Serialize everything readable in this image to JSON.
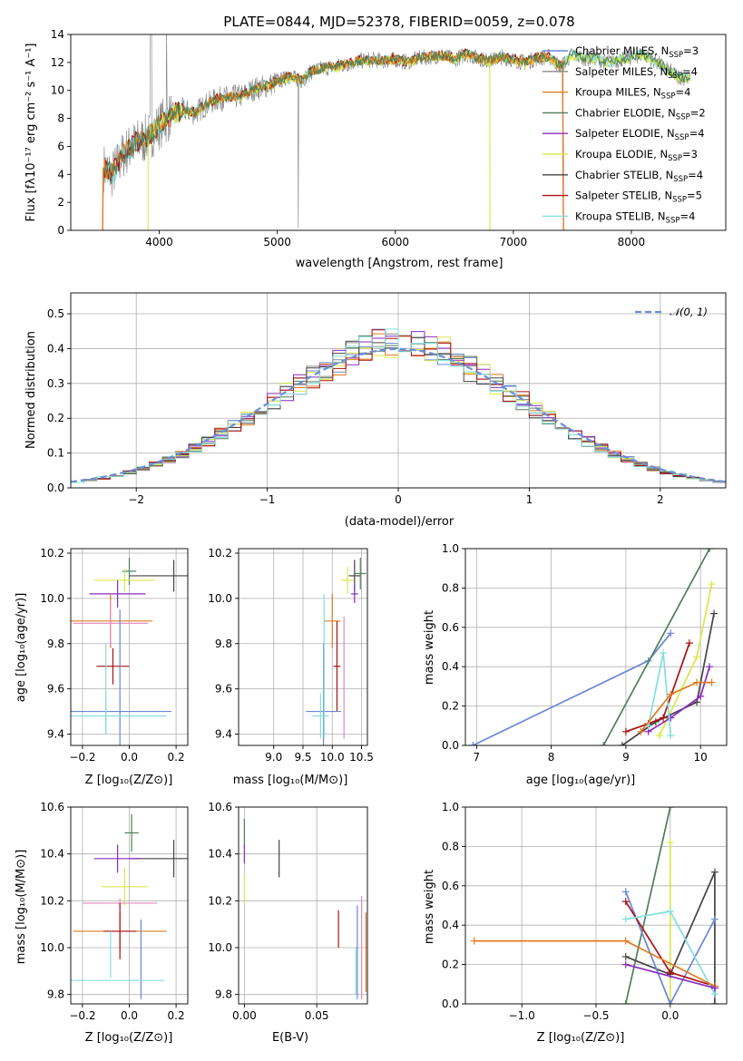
{
  "colors": {
    "Chabrier MILES": "#6b86d6",
    "Salpeter MILES": "#888888",
    "Kroupa MILES": "#e07b22",
    "Chabrier ELODIE": "#4f7f5a",
    "Salpeter ELODIE": "#8a2bbf",
    "Kroupa ELODIE": "#d9e84a",
    "Chabrier STELIB": "#444444",
    "Salpeter STELIB": "#aa1111",
    "Kroupa STELIB": "#84dede",
    "gauss": "#6a8fd8",
    "pink": "#e088c0"
  },
  "chart_data": [
    {
      "id": "spectrum",
      "type": "line",
      "title": "PLATE=0844, MJD=52378, FIBERID=0059, z=0.078",
      "xlabel": "wavelength [Angstrom, rest frame]",
      "ylabel": "Flux [fλ10⁻¹⁷ erg cm⁻² s⁻¹ A⁻¹]",
      "xlim": [
        3250,
        8800
      ],
      "ylim": [
        0,
        14
      ],
      "xticks": [
        4000,
        5000,
        6000,
        7000,
        8000
      ],
      "yticks": [
        0,
        2,
        4,
        6,
        8,
        10,
        12,
        14
      ],
      "grid": false,
      "legend_position": "right",
      "legend": [
        {
          "label": "Chabrier MILES, N",
          "sub": "SSP",
          "suffix": "=3",
          "color": "Chabrier MILES"
        },
        {
          "label": "Salpeter MILES, N",
          "sub": "SSP",
          "suffix": "=4",
          "color": "Salpeter MILES"
        },
        {
          "label": "Kroupa MILES, N",
          "sub": "SSP",
          "suffix": "=4",
          "color": "Kroupa MILES"
        },
        {
          "label": "Chabrier ELODIE, N",
          "sub": "SSP",
          "suffix": "=2",
          "color": "Chabrier ELODIE"
        },
        {
          "label": "Salpeter ELODIE, N",
          "sub": "SSP",
          "suffix": "=4",
          "color": "Salpeter ELODIE"
        },
        {
          "label": "Kroupa ELODIE, N",
          "sub": "SSP",
          "suffix": "=3",
          "color": "Kroupa ELODIE"
        },
        {
          "label": "Chabrier STELIB, N",
          "sub": "SSP",
          "suffix": "=4",
          "color": "Chabrier STELIB"
        },
        {
          "label": "Salpeter STELIB, N",
          "sub": "SSP",
          "suffix": "=5",
          "color": "Salpeter STELIB"
        },
        {
          "label": "Kroupa STELIB, N",
          "sub": "SSP",
          "suffix": "=4",
          "color": "Kroupa STELIB"
        }
      ],
      "observed_envelope": [
        [
          3530,
          4.5
        ],
        [
          3600,
          4.0
        ],
        [
          3700,
          5.5
        ],
        [
          3800,
          6.2
        ],
        [
          3900,
          6.6
        ],
        [
          4000,
          7.5
        ],
        [
          4100,
          8.2
        ],
        [
          4200,
          8.6
        ],
        [
          4300,
          8.4
        ],
        [
          4400,
          9.0
        ],
        [
          4500,
          9.4
        ],
        [
          4600,
          9.5
        ],
        [
          4700,
          9.6
        ],
        [
          4800,
          10.1
        ],
        [
          4900,
          10.3
        ],
        [
          5000,
          10.6
        ],
        [
          5100,
          11.0
        ],
        [
          5200,
          10.7
        ],
        [
          5300,
          11.4
        ],
        [
          5400,
          11.6
        ],
        [
          5500,
          11.7
        ],
        [
          5600,
          11.9
        ],
        [
          5700,
          12.1
        ],
        [
          5800,
          12.2
        ],
        [
          5900,
          12.1
        ],
        [
          6000,
          12.2
        ],
        [
          6100,
          12.0
        ],
        [
          6200,
          12.3
        ],
        [
          6300,
          12.4
        ],
        [
          6400,
          12.5
        ],
        [
          6500,
          12.2
        ],
        [
          6600,
          12.6
        ],
        [
          6700,
          12.3
        ],
        [
          6800,
          12.1
        ],
        [
          6900,
          12.4
        ],
        [
          7000,
          12.2
        ],
        [
          7100,
          12.0
        ],
        [
          7200,
          12.3
        ],
        [
          7300,
          12.4
        ],
        [
          7400,
          11.7
        ],
        [
          7500,
          12.6
        ],
        [
          7600,
          12.3
        ],
        [
          7700,
          12.3
        ],
        [
          7800,
          12.0
        ],
        [
          7900,
          12.2
        ],
        [
          8000,
          12.4
        ],
        [
          8100,
          12.6
        ],
        [
          8200,
          12.1
        ],
        [
          8300,
          11.5
        ],
        [
          8400,
          11.0
        ],
        [
          8500,
          10.8
        ]
      ]
    },
    {
      "id": "residuals",
      "type": "histogram",
      "xlabel": "(data-model)/error",
      "ylabel": "Normed distribution",
      "xlim": [
        -2.5,
        2.5
      ],
      "ylim": [
        0,
        0.56
      ],
      "xticks": [
        -2,
        -1,
        0,
        1,
        2
      ],
      "yticks": [
        0.0,
        0.1,
        0.2,
        0.3,
        0.4,
        0.5
      ],
      "grid": true,
      "legend_position": "top-right",
      "legend": "𝒩(0, 1)"
    },
    {
      "id": "age_vs_Z",
      "type": "errorbar",
      "xlabel": "Z [log₁₀(Z/Z⊙)]",
      "ylabel": "age  [log₁₀(age/yr)]",
      "xlim": [
        -0.25,
        0.25
      ],
      "ylim": [
        9.35,
        10.22
      ],
      "xticks": [
        -0.2,
        0.0,
        0.2
      ],
      "yticks": [
        9.4,
        9.6,
        9.8,
        10.0,
        10.2
      ],
      "grid": true,
      "points": [
        {
          "color": "Chabrier STELIB",
          "x": 0.19,
          "xerr": 0.19,
          "y": 10.1,
          "yerr": 0.07
        },
        {
          "color": "Chabrier ELODIE",
          "x": 0.0,
          "xerr": 0.03,
          "y": 10.12,
          "yerr": 0.06
        },
        {
          "color": "Kroupa ELODIE",
          "x": -0.02,
          "xerr": 0.13,
          "y": 10.08,
          "yerr": 0.05
        },
        {
          "color": "Salpeter ELODIE",
          "x": -0.05,
          "xerr": 0.12,
          "y": 10.02,
          "yerr": 0.06
        },
        {
          "color": "Kroupa MILES",
          "x": -0.08,
          "xerr": 0.18,
          "y": 9.9,
          "yerr": 0.12
        },
        {
          "color": "pink",
          "x": -0.08,
          "xerr": 0.16,
          "y": 9.89,
          "yerr": 0.1
        },
        {
          "color": "Salpeter STELIB",
          "x": -0.07,
          "xerr": 0.07,
          "y": 9.7,
          "yerr": 0.08
        },
        {
          "color": "Chabrier MILES",
          "x": -0.04,
          "xerr": 0.22,
          "y": 9.5,
          "yerr": 0.45
        },
        {
          "color": "Kroupa STELIB",
          "x": -0.1,
          "xerr": 0.26,
          "y": 9.48,
          "yerr": 0.08
        },
        {
          "color": "Kroupa STELIB",
          "x": -0.1,
          "xerr": 0.0,
          "y": 9.6,
          "yerr": 0.2
        }
      ]
    },
    {
      "id": "age_vs_mass",
      "type": "errorbar",
      "xlabel": "mass [log₁₀(M/M⊙)]",
      "ylabel": "",
      "xlim": [
        8.4,
        10.6
      ],
      "ylim": [
        9.35,
        10.22
      ],
      "xticks": [
        9.0,
        9.5,
        10.0,
        10.5
      ],
      "yticks": [
        9.4,
        9.6,
        9.8,
        10.0,
        10.2
      ],
      "grid": true,
      "points": [
        {
          "color": "Chabrier ELODIE",
          "x": 10.48,
          "xerr": 0.1,
          "y": 10.11,
          "yerr": 0.07
        },
        {
          "color": "Chabrier STELIB",
          "x": 10.38,
          "xerr": 0.1,
          "y": 10.1,
          "yerr": 0.07
        },
        {
          "color": "Kroupa ELODIE",
          "x": 10.26,
          "xerr": 0.1,
          "y": 10.08,
          "yerr": 0.06
        },
        {
          "color": "Salpeter ELODIE",
          "x": 10.38,
          "xerr": 0.06,
          "y": 10.02,
          "yerr": 0.04
        },
        {
          "color": "Kroupa MILES",
          "x": 10.0,
          "xerr": 0.14,
          "y": 9.9,
          "yerr": 0.12
        },
        {
          "color": "pink",
          "x": 10.2,
          "xerr": 0.0,
          "y": 9.65,
          "yerr": 0.27
        },
        {
          "color": "Salpeter STELIB",
          "x": 10.08,
          "xerr": 0.06,
          "y": 9.7,
          "yerr": 0.2
        },
        {
          "color": "Chabrier MILES",
          "x": 9.85,
          "xerr": 0.3,
          "y": 9.5,
          "yerr": 0.3
        },
        {
          "color": "Kroupa STELIB",
          "x": 9.8,
          "xerr": 0.14,
          "y": 9.48,
          "yerr": 0.1
        },
        {
          "color": "Kroupa STELIB",
          "x": 9.86,
          "xerr": 0.0,
          "y": 9.7,
          "yerr": 0.32
        }
      ]
    },
    {
      "id": "weight_vs_age",
      "type": "line",
      "xlabel": "age  [log₁₀(age/yr)]",
      "ylabel": "mass weight",
      "xlim": [
        6.85,
        10.35
      ],
      "ylim": [
        0,
        1.0
      ],
      "xticks": [
        7,
        8,
        9,
        10
      ],
      "yticks": [
        0.0,
        0.2,
        0.4,
        0.6,
        0.8,
        1.0
      ],
      "grid": true,
      "series": [
        {
          "color": "Chabrier MILES",
          "x": [
            6.95,
            9.3,
            9.6
          ],
          "y": [
            0.0,
            0.43,
            0.57
          ]
        },
        {
          "color": "Chabrier ELODIE",
          "x": [
            8.7,
            10.12
          ],
          "y": [
            0.0,
            1.0
          ]
        },
        {
          "color": "Kroupa ELODIE",
          "x": [
            9.45,
            9.95,
            10.15
          ],
          "y": [
            0.05,
            0.45,
            0.82
          ]
        },
        {
          "color": "Chabrier STELIB",
          "x": [
            8.95,
            9.4,
            9.95,
            10.18
          ],
          "y": [
            0.0,
            0.12,
            0.22,
            0.67
          ]
        },
        {
          "color": "Salpeter STELIB",
          "x": [
            9.0,
            9.3,
            9.5,
            9.85
          ],
          "y": [
            0.07,
            0.11,
            0.14,
            0.52
          ]
        },
        {
          "color": "Salpeter ELODIE",
          "x": [
            9.3,
            9.6,
            10.0,
            10.12
          ],
          "y": [
            0.07,
            0.14,
            0.25,
            0.4
          ]
        },
        {
          "color": "Kroupa STELIB",
          "x": [
            9.3,
            9.5,
            9.6
          ],
          "y": [
            0.1,
            0.47,
            0.05
          ]
        },
        {
          "color": "Kroupa MILES",
          "x": [
            9.2,
            9.6,
            9.95,
            10.15
          ],
          "y": [
            0.07,
            0.26,
            0.32,
            0.32
          ]
        }
      ]
    },
    {
      "id": "mass_vs_Z",
      "type": "errorbar",
      "xlabel": "Z [log₁₀(Z/Z⊙)]",
      "ylabel": "mass [log₁₀(M/M⊙)]",
      "xlim": [
        -0.25,
        0.25
      ],
      "ylim": [
        9.76,
        10.6
      ],
      "xticks": [
        -0.2,
        0.0,
        0.2
      ],
      "yticks": [
        9.8,
        10.0,
        10.2,
        10.4,
        10.6
      ],
      "grid": true,
      "points": [
        {
          "color": "Chabrier ELODIE",
          "x": 0.01,
          "xerr": 0.03,
          "y": 10.49,
          "yerr": 0.08
        },
        {
          "color": "Chabrier STELIB",
          "x": 0.19,
          "xerr": 0.19,
          "y": 10.38,
          "yerr": 0.08
        },
        {
          "color": "Salpeter ELODIE",
          "x": -0.05,
          "xerr": 0.1,
          "y": 10.38,
          "yerr": 0.06
        },
        {
          "color": "Kroupa ELODIE",
          "x": -0.02,
          "xerr": 0.1,
          "y": 10.26,
          "yerr": 0.08
        },
        {
          "color": "pink",
          "x": -0.04,
          "xerr": 0.16,
          "y": 10.19,
          "yerr": 0.02
        },
        {
          "color": "Kroupa MILES",
          "x": -0.04,
          "xerr": 0.2,
          "y": 10.07,
          "yerr": 0.08
        },
        {
          "color": "Salpeter STELIB",
          "x": -0.04,
          "xerr": 0.07,
          "y": 10.07,
          "yerr": 0.12
        },
        {
          "color": "Chabrier MILES",
          "x": 0.05,
          "xerr": 0.0,
          "y": 9.95,
          "yerr": 0.17
        },
        {
          "color": "Kroupa STELIB",
          "x": -0.09,
          "xerr": 0.24,
          "y": 9.86,
          "yerr": 0.0
        },
        {
          "color": "Kroupa STELIB",
          "x": -0.08,
          "xerr": 0.0,
          "y": 9.97,
          "yerr": 0.1
        }
      ]
    },
    {
      "id": "mass_vs_EBV",
      "type": "errorbar",
      "xlabel": "E(B-V)",
      "ylabel": "",
      "xlim": [
        -0.004,
        0.085
      ],
      "ylim": [
        9.76,
        10.6
      ],
      "xticks": [
        0.0,
        0.05
      ],
      "yticks": [
        9.8,
        10.0,
        10.2,
        10.4,
        10.6
      ],
      "grid": true,
      "points": [
        {
          "color": "Chabrier ELODIE",
          "x": 0.0,
          "xerr": 0.0,
          "y": 10.49,
          "yerr": 0.06
        },
        {
          "color": "Salpeter ELODIE",
          "x": 0.0,
          "xerr": 0.0,
          "y": 10.4,
          "yerr": 0.04
        },
        {
          "color": "Kroupa ELODIE",
          "x": 0.0,
          "xerr": 0.0,
          "y": 10.25,
          "yerr": 0.06
        },
        {
          "color": "Chabrier STELIB",
          "x": 0.024,
          "xerr": 0.0,
          "y": 10.38,
          "yerr": 0.08
        },
        {
          "color": "Salpeter STELIB",
          "x": 0.065,
          "xerr": 0.0,
          "y": 10.08,
          "yerr": 0.08
        },
        {
          "color": "Kroupa STELIB",
          "x": 0.077,
          "xerr": 0.0,
          "y": 9.9,
          "yerr": 0.1
        },
        {
          "color": "Chabrier MILES",
          "x": 0.078,
          "xerr": 0.0,
          "y": 9.98,
          "yerr": 0.2
        },
        {
          "color": "pink",
          "x": 0.081,
          "xerr": 0.0,
          "y": 10.0,
          "yerr": 0.22
        },
        {
          "color": "Kroupa MILES",
          "x": 0.084,
          "xerr": 0.0,
          "y": 9.98,
          "yerr": 0.17
        }
      ]
    },
    {
      "id": "weight_vs_Z",
      "type": "line",
      "xlabel": "Z [log₁₀(Z/Z⊙)]",
      "ylabel": "mass weight",
      "xlim": [
        -1.38,
        0.38
      ],
      "ylim": [
        0,
        1.0
      ],
      "xticks": [
        -1.0,
        -0.5,
        0.0
      ],
      "yticks": [
        0.0,
        0.2,
        0.4,
        0.6,
        0.8,
        1.0
      ],
      "grid": true,
      "series": [
        {
          "color": "Chabrier ELODIE",
          "x": [
            -0.3,
            0.0
          ],
          "y": [
            0.0,
            1.0
          ]
        },
        {
          "color": "Kroupa ELODIE",
          "x": [
            0.0,
            0.0
          ],
          "y": [
            0.0,
            0.82
          ]
        },
        {
          "color": "Chabrier STELIB",
          "x": [
            -0.3,
            0.0,
            0.3,
            0.3
          ],
          "y": [
            0.24,
            0.15,
            0.67,
            0.0
          ]
        },
        {
          "color": "Chabrier MILES",
          "x": [
            -0.3,
            0.0,
            0.3
          ],
          "y": [
            0.57,
            0.0,
            0.43
          ]
        },
        {
          "color": "Salpeter STELIB",
          "x": [
            -0.3,
            0.0,
            0.3
          ],
          "y": [
            0.52,
            0.16,
            0.09
          ]
        },
        {
          "color": "Kroupa STELIB",
          "x": [
            -0.3,
            0.0,
            0.3
          ],
          "y": [
            0.43,
            0.47,
            0.05
          ]
        },
        {
          "color": "Kroupa MILES",
          "x": [
            -1.32,
            -0.3,
            0.3
          ],
          "y": [
            0.32,
            0.32,
            0.09
          ]
        },
        {
          "color": "Salpeter ELODIE",
          "x": [
            -0.3,
            0.3
          ],
          "y": [
            0.2,
            0.08
          ]
        }
      ]
    }
  ]
}
